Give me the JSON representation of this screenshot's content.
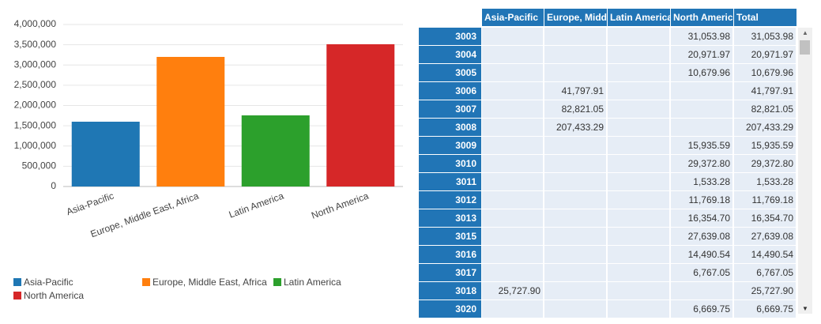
{
  "chart_data": {
    "type": "bar",
    "categories": [
      "Asia-Pacific",
      "Europe, Middle East, Africa",
      "Latin America",
      "North America"
    ],
    "values": [
      1600000,
      3200000,
      1756000,
      3512000
    ],
    "colors": [
      "#1f77b4",
      "#ff7f0e",
      "#2ca02c",
      "#d62728"
    ],
    "ylim": [
      0,
      4000000
    ],
    "yticks": [
      0,
      {
        "value": 500000,
        "label": "500,000"
      },
      {
        "value": 1000000,
        "label": "1,000,000"
      },
      {
        "value": 1500000,
        "label": "1,500,000"
      },
      {
        "value": 2000000,
        "label": "2,000,000"
      },
      {
        "value": 2500000,
        "label": "2,500,000"
      },
      {
        "value": 3000000,
        "label": "3,000,000"
      },
      {
        "value": 3500000,
        "label": "3,500,000"
      },
      {
        "value": 4000000,
        "label": "4,000,000"
      }
    ],
    "grid": true,
    "legend": "bottom-left"
  },
  "table": {
    "header": [
      "Asia-Pacific",
      "Europe, Middle East, Africa",
      "Latin America",
      "North America",
      "Total"
    ],
    "rows": [
      [
        "3003",
        null,
        null,
        null,
        "31,053.98",
        "31,053.98"
      ],
      [
        "3004",
        null,
        null,
        null,
        "20,971.97",
        "20,971.97"
      ],
      [
        "3005",
        null,
        null,
        null,
        "10,679.96",
        "10,679.96"
      ],
      [
        "3006",
        null,
        "41,797.91",
        null,
        null,
        "41,797.91"
      ],
      [
        "3007",
        null,
        "82,821.05",
        null,
        null,
        "82,821.05"
      ],
      [
        "3008",
        null,
        "207,433.29",
        null,
        null,
        "207,433.29"
      ],
      [
        "3009",
        null,
        null,
        null,
        "15,935.59",
        "15,935.59"
      ],
      [
        "3010",
        null,
        null,
        null,
        "29,372.80",
        "29,372.80"
      ],
      [
        "3011",
        null,
        null,
        null,
        "1,533.28",
        "1,533.28"
      ],
      [
        "3012",
        null,
        null,
        null,
        "11,769.18",
        "11,769.18"
      ],
      [
        "3013",
        null,
        null,
        null,
        "16,354.70",
        "16,354.70"
      ],
      [
        "3015",
        null,
        null,
        null,
        "27,639.08",
        "27,639.08"
      ],
      [
        "3016",
        null,
        null,
        null,
        "14,490.54",
        "14,490.54"
      ],
      [
        "3017",
        null,
        null,
        null,
        "6,767.05",
        "6,767.05"
      ],
      [
        "3018",
        "25,727.90",
        null,
        null,
        null,
        "25,727.90"
      ],
      [
        "3020",
        null,
        null,
        null,
        "6,669.75",
        "6,669.75"
      ]
    ]
  }
}
